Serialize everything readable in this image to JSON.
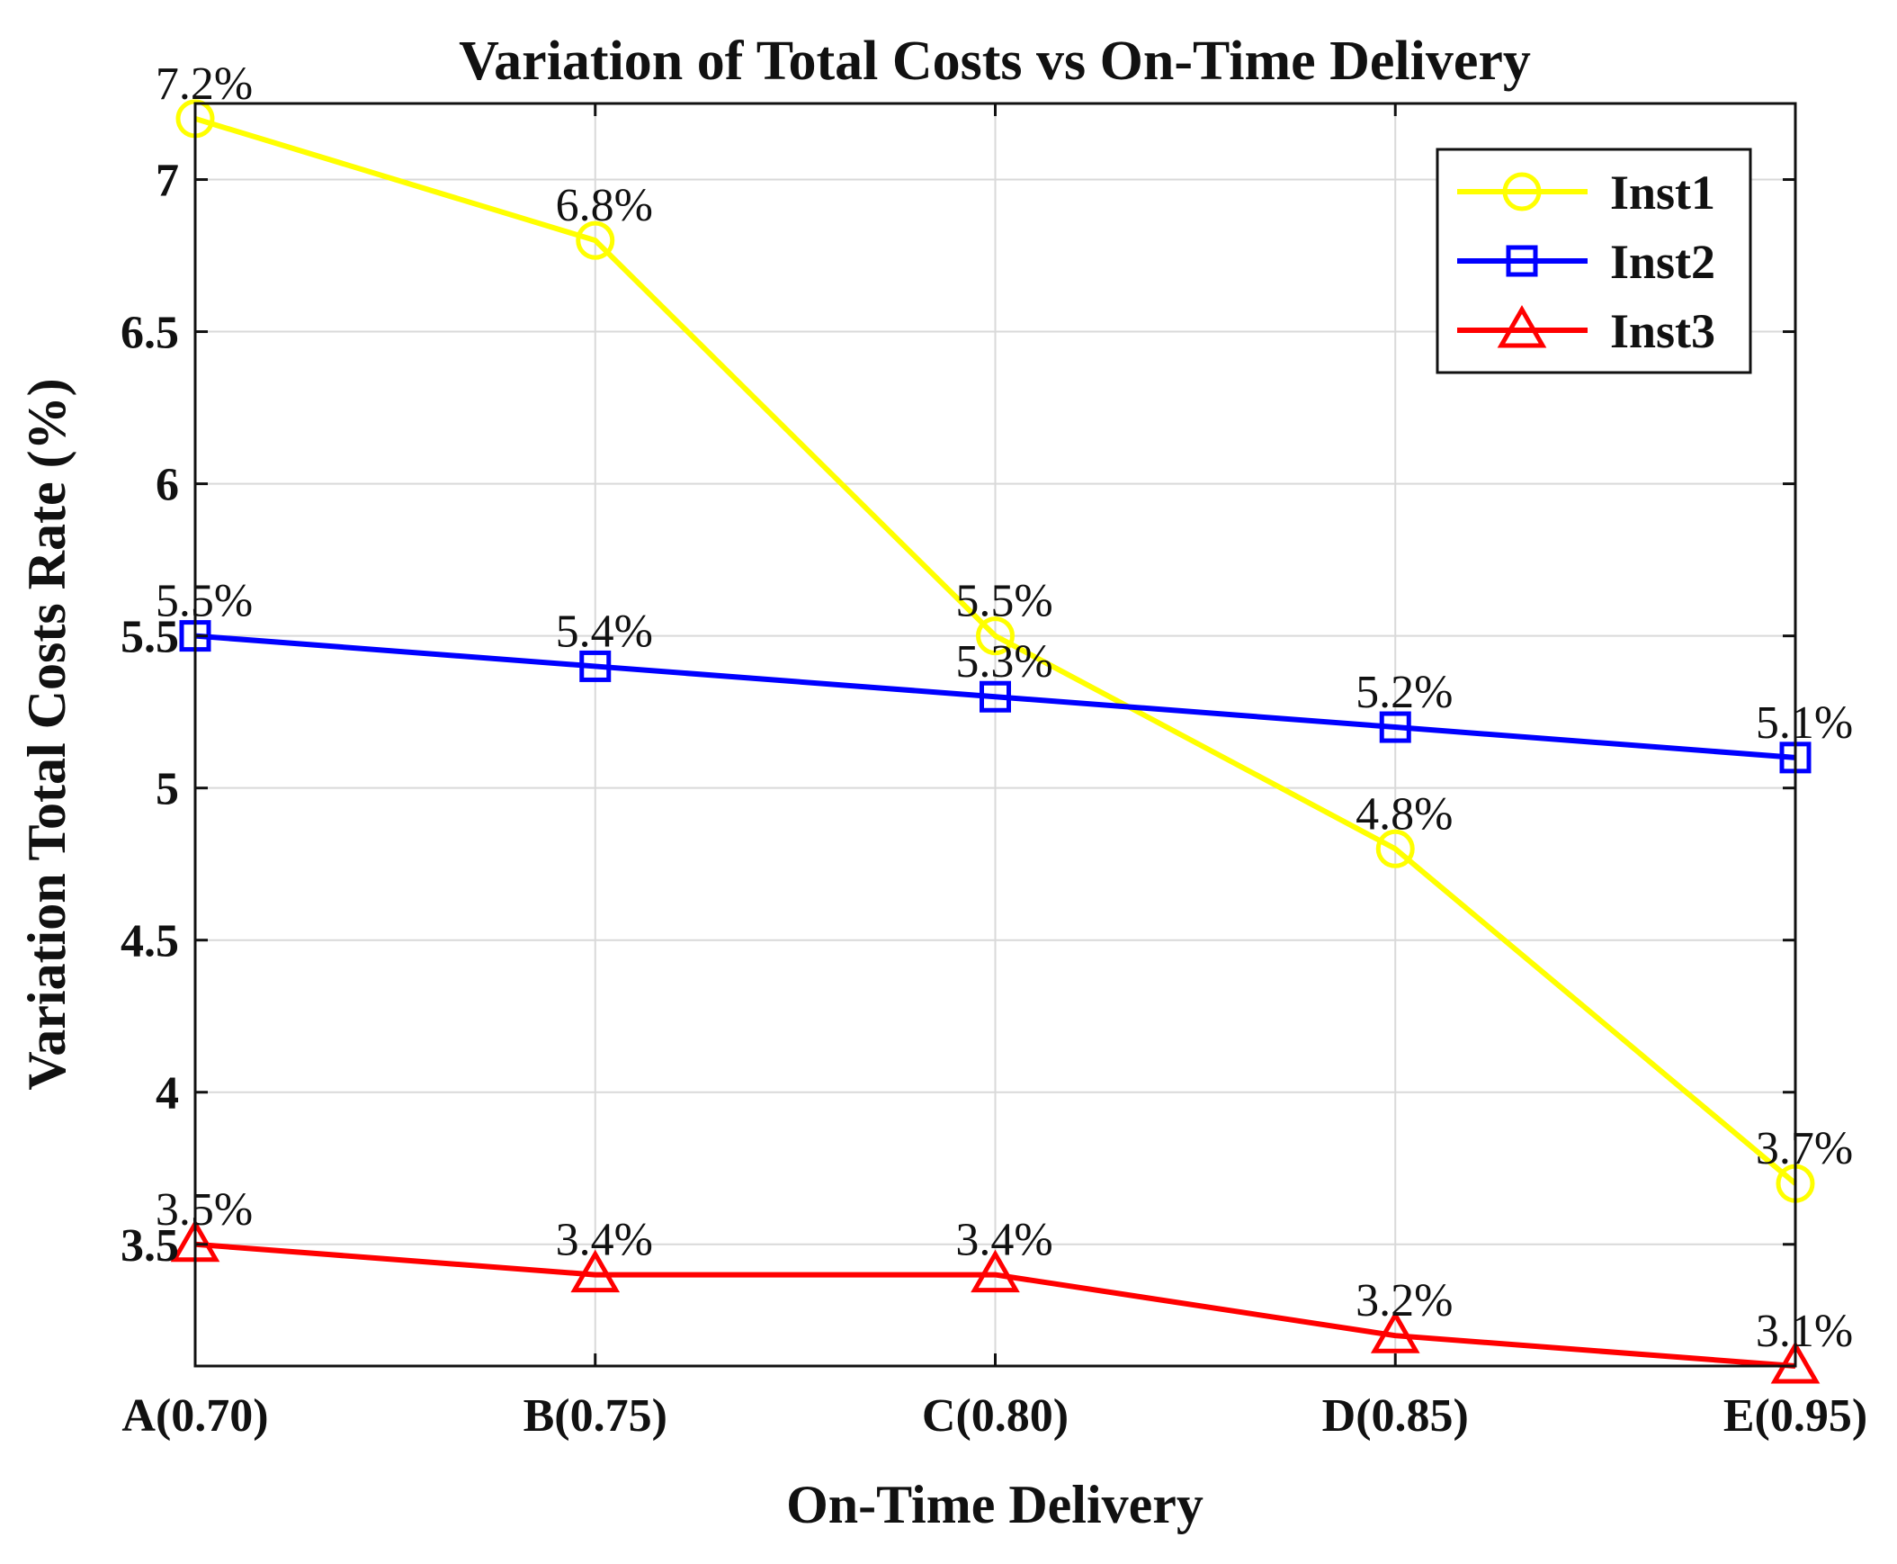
{
  "chart_data": {
    "type": "line",
    "title": "Variation of Total Costs vs On-Time Delivery",
    "xlabel": "On-Time Delivery",
    "ylabel": "Variation Total Costs Rate (%)",
    "categories": [
      "A(0.70)",
      "B(0.75)",
      "C(0.80)",
      "D(0.85)",
      "E(0.95)"
    ],
    "ylim": [
      3.1,
      7.25
    ],
    "yticks": [
      3.5,
      4,
      4.5,
      5,
      5.5,
      6,
      6.5,
      7
    ],
    "ytick_labels": [
      "3.5",
      "4",
      "4.5",
      "5",
      "5.5",
      "6",
      "6.5",
      "7"
    ],
    "grid": true,
    "legend_position": "top-right",
    "series": [
      {
        "name": "Inst1",
        "color": "#ffff00",
        "marker": "circle",
        "values": [
          7.2,
          6.8,
          5.5,
          4.8,
          3.7
        ],
        "labels": [
          "7.2%",
          "6.8%",
          "5.5%",
          "4.8%",
          "3.7%"
        ]
      },
      {
        "name": "Inst2",
        "color": "#0000ff",
        "marker": "square",
        "values": [
          5.5,
          5.4,
          5.3,
          5.2,
          5.1
        ],
        "labels": [
          "5.5%",
          "5.4%",
          "5.3%",
          "5.2%",
          "5.1%"
        ]
      },
      {
        "name": "Inst3",
        "color": "#ff0000",
        "marker": "triangle",
        "values": [
          3.5,
          3.4,
          3.4,
          3.2,
          3.1
        ],
        "labels": [
          "3.5%",
          "3.4%",
          "3.4%",
          "3.2%",
          "3.1%"
        ]
      }
    ]
  }
}
